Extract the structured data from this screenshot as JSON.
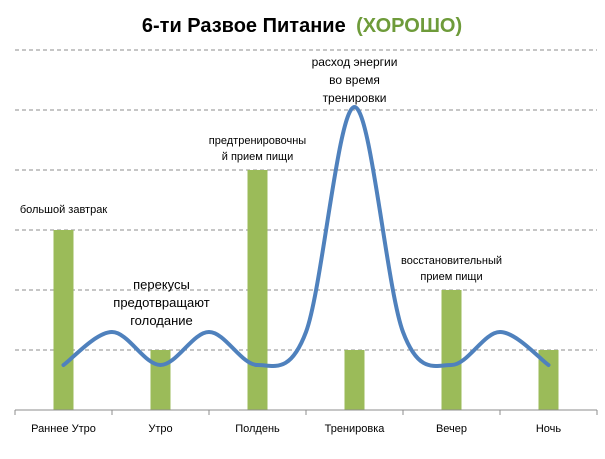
{
  "chart_data": {
    "type": "bar",
    "title": "6-ти Развое Питание",
    "title_accent": "(ХОРОШО)",
    "categories": [
      "Раннее Утро",
      "Утро",
      "Полдень",
      "Тренировка",
      "Вечер",
      "Ночь"
    ],
    "series": [
      {
        "values": [
          3,
          1,
          4,
          1,
          2,
          1
        ],
        "type": "bar"
      }
    ],
    "energy_curve": {
      "type": "line",
      "x": [
        0,
        0.5,
        1,
        1.5,
        2,
        2.5,
        3,
        3.5,
        4,
        4.5,
        5
      ],
      "y": [
        0.75,
        1.3,
        0.75,
        1.3,
        0.75,
        1.3,
        5.05,
        1.3,
        0.75,
        1.3,
        0.75
      ]
    },
    "ylim": [
      0,
      6
    ],
    "grid": true,
    "legend": "none",
    "annotations": [
      {
        "lines": [
          "большой завтрак"
        ],
        "category": "Раннее Утро"
      },
      {
        "lines": [
          "перекусы",
          "предотвращают",
          "голодание"
        ],
        "category": "Утро"
      },
      {
        "lines": [
          "предтренировочны",
          "й прием пищи"
        ],
        "category": "Полдень"
      },
      {
        "lines": [
          "расход энергии",
          "во время",
          "тренировки"
        ],
        "category": "Тренировка"
      },
      {
        "lines": [
          "восстановительный",
          "прием пищи"
        ],
        "category": "Вечер"
      }
    ],
    "colors": {
      "bar": "#9bbb59",
      "line": "#4f81bd",
      "grid": "#8c8c8c",
      "title_accent": "#6e9b3a"
    }
  }
}
